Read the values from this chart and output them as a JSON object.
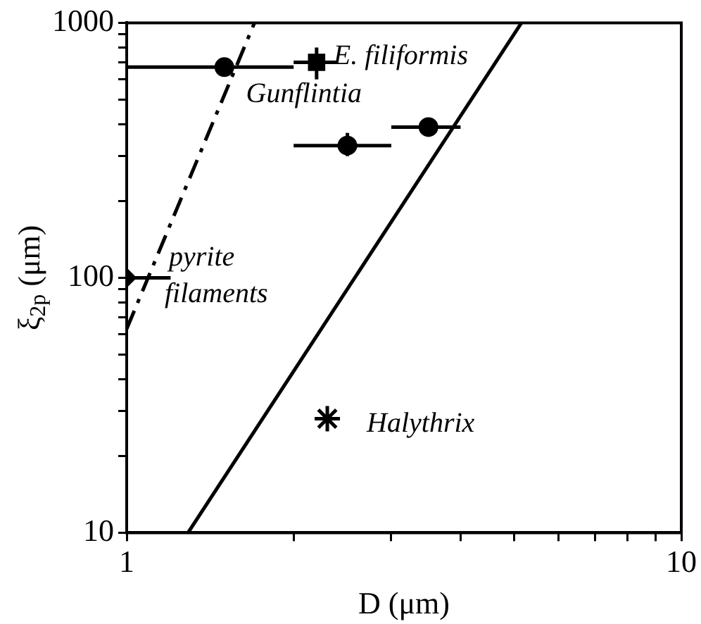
{
  "chart_data": {
    "type": "scatter",
    "xlabel": "D (μm)",
    "ylabel": "ξ$_{2p}$ (μm)",
    "log": "xy",
    "xlim": [
      1,
      10
    ],
    "ylim": [
      10,
      1000
    ],
    "xticks": [
      1,
      {
        "value": 2,
        "label": null
      },
      {
        "value": 3,
        "label": null
      },
      {
        "value": 4,
        "label": null
      },
      {
        "value": 5,
        "label": null
      },
      {
        "value": 6,
        "label": null
      },
      {
        "value": 7,
        "label": null
      },
      {
        "value": 8,
        "label": null
      },
      {
        "value": 9,
        "label": null
      },
      10
    ],
    "yticks": [
      10,
      {
        "value": 20,
        "label": null
      },
      {
        "value": 30,
        "label": null
      },
      {
        "value": 40,
        "label": null
      },
      {
        "value": 50,
        "label": null
      },
      {
        "value": 60,
        "label": null
      },
      {
        "value": 70,
        "label": null
      },
      {
        "value": 80,
        "label": null
      },
      {
        "value": 90,
        "label": null
      },
      100,
      {
        "value": 200,
        "label": null
      },
      {
        "value": 300,
        "label": null
      },
      {
        "value": 400,
        "label": null
      },
      {
        "value": 500,
        "label": null
      },
      {
        "value": 600,
        "label": null
      },
      {
        "value": 700,
        "label": null
      },
      {
        "value": 800,
        "label": null
      },
      {
        "value": 900,
        "label": null
      },
      1000
    ],
    "grid": false,
    "legend": false,
    "annotations": [
      {
        "text": "E. filiformis",
        "x": 2.2,
        "y": 700
      },
      {
        "text": "Gunflintia",
        "x": 2.5,
        "y": 330
      },
      {
        "text": "pyrite filaments",
        "x": 1,
        "y": 100
      },
      {
        "text": "Halythrix",
        "x": 2.3,
        "y": 28
      }
    ],
    "series": [
      {
        "type": "line",
        "x": [
          1.29,
          5.15
        ],
        "values": [
          10,
          1000
        ],
        "color": "#000000",
        "marker": "none",
        "line_style": "solid"
      },
      {
        "type": "line",
        "x": [
          1,
          1.7
        ],
        "values": [
          63,
          1000
        ],
        "color": "#000000",
        "marker": "none",
        "line_style": "dashed"
      },
      {
        "type": "scatter",
        "x": [
          1.5
        ],
        "values": [
          670
        ],
        "xerrors": [
          [
            1,
            2.0
          ]
        ],
        "color": "#000000",
        "marker": "circle"
      },
      {
        "type": "scatter",
        "x": [
          2.2
        ],
        "values": [
          700
        ],
        "xerrors": [
          [
            2.0,
            2.4
          ]
        ],
        "errors": [
          [
            600,
            800
          ]
        ],
        "color": "#000000",
        "marker": "square"
      },
      {
        "type": "scatter",
        "x": [
          2.5,
          3.5
        ],
        "values": [
          330,
          390
        ],
        "xerrors": [
          [
            2.0,
            3.0
          ],
          [
            3.0,
            4.0
          ]
        ],
        "errors": [
          [
            300,
            370
          ],
          [
            360,
            420
          ]
        ],
        "color": "#000000",
        "marker": "circle"
      },
      {
        "type": "scatter",
        "x": [
          1
        ],
        "values": [
          100
        ],
        "xerrors": [
          [
            1,
            1.2
          ]
        ],
        "color": "#000000",
        "marker": "diamond"
      },
      {
        "type": "scatter",
        "x": [
          2.3
        ],
        "values": [
          28
        ],
        "color": "#000000",
        "marker": "cross"
      }
    ]
  }
}
